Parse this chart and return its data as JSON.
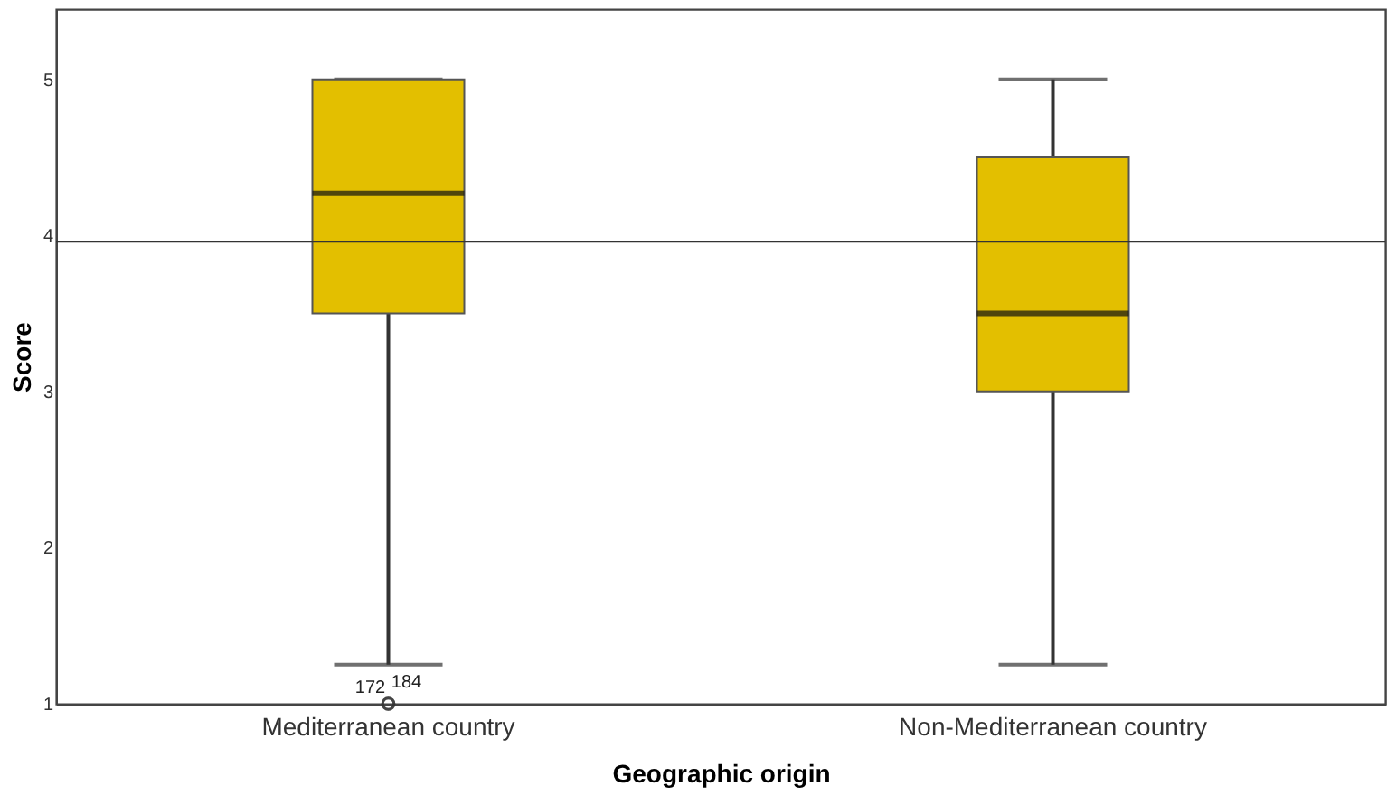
{
  "chart_data": {
    "type": "box",
    "xlabel": "Geographic origin",
    "ylabel": "Score",
    "categories": [
      "Mediterranean country",
      "Non-Mediterranean country"
    ],
    "series": [
      {
        "color": "#e3bf00",
        "boxes": [
          {
            "low": 1.25,
            "q1": 3.5,
            "median": 4.27,
            "q3": 5,
            "high": 5,
            "outliers": [
              1,
              1
            ]
          },
          {
            "low": 1.25,
            "q1": 3.0,
            "median": 3.5,
            "q3": 4.5,
            "high": 5
          }
        ]
      }
    ],
    "ylim": [
      1,
      5.45
    ],
    "yticks": [
      1,
      2,
      3,
      4,
      5
    ],
    "ref_lines": [
      {
        "axis": "y",
        "value": 3.96,
        "color": "#333333"
      }
    ],
    "annotations": [
      "172",
      "184"
    ]
  }
}
